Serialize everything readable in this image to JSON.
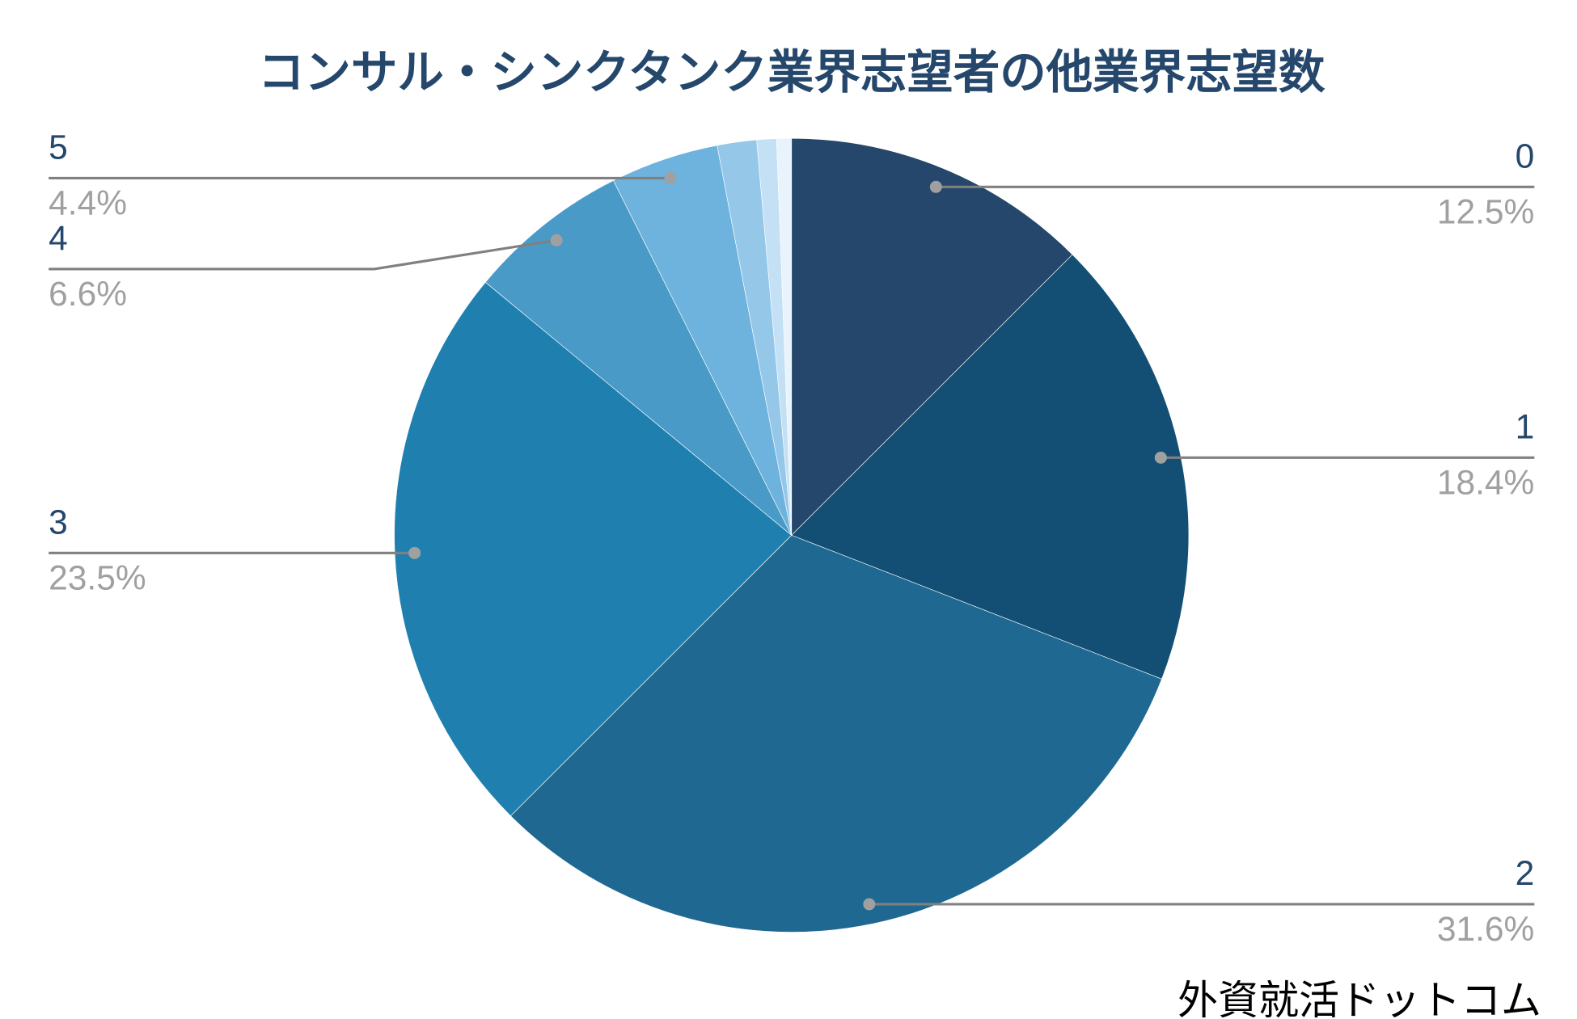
{
  "chart_data": {
    "type": "pie",
    "title": "コンサル・シンクタンク業界志望者の他業界志望数",
    "categories": [
      "0",
      "1",
      "2",
      "3",
      "4",
      "5",
      null,
      null,
      null
    ],
    "values": [
      12.5,
      18.4,
      31.6,
      23.5,
      6.6,
      4.4,
      1.6,
      0.8,
      0.6
    ],
    "value_labels": [
      "12.5%",
      "18.4%",
      "31.6%",
      "23.5%",
      "6.6%",
      "4.4%",
      null,
      null,
      null
    ],
    "colors": [
      "#24476b",
      "#134f74",
      "#1f6891",
      "#1f80b0",
      "#4a9ac7",
      "#6db3de",
      "#95c8e8",
      "#c3e0f4",
      "#e8f3fb"
    ],
    "watermark": "外資就活ドットコム"
  }
}
